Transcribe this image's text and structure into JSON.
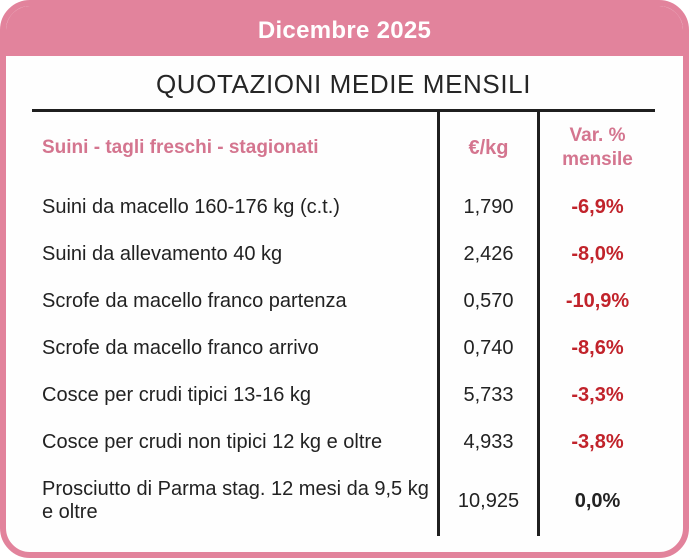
{
  "banner": {
    "month_label": "Dicembre 2025"
  },
  "title": "QUOTAZIONI MEDIE MENSILI",
  "table": {
    "columns": {
      "category": "Suini - tagli freschi - stagionati",
      "price": "€/kg",
      "variation_line1": "Var. %",
      "variation_line2": "mensile"
    },
    "rows": [
      {
        "label": "Suini da macello 160-176 kg (c.t.)",
        "price": "1,790",
        "variation": "-6,9%"
      },
      {
        "label": "Suini da allevamento 40 kg",
        "price": "2,426",
        "variation": "-8,0%"
      },
      {
        "label": "Scrofe da macello franco partenza",
        "price": "0,570",
        "variation": "-10,9%"
      },
      {
        "label": "Scrofe da macello franco arrivo",
        "price": "0,740",
        "variation": "-8,6%"
      },
      {
        "label": "Cosce per crudi tipici 13-16 kg",
        "price": "5,733",
        "variation": "-3,3%"
      },
      {
        "label": "Cosce per crudi non tipici 12 kg e oltre",
        "price": "4,933",
        "variation": "-3,8%"
      },
      {
        "label": "Prosciutto di Parma stag. 12 mesi da 9,5 kg e oltre",
        "price": "10,925",
        "variation": "0,0%"
      }
    ]
  },
  "colors": {
    "pink": "#e2839c",
    "pink_text": "#d4758f",
    "red": "#c1232b",
    "ink": "#222222"
  }
}
